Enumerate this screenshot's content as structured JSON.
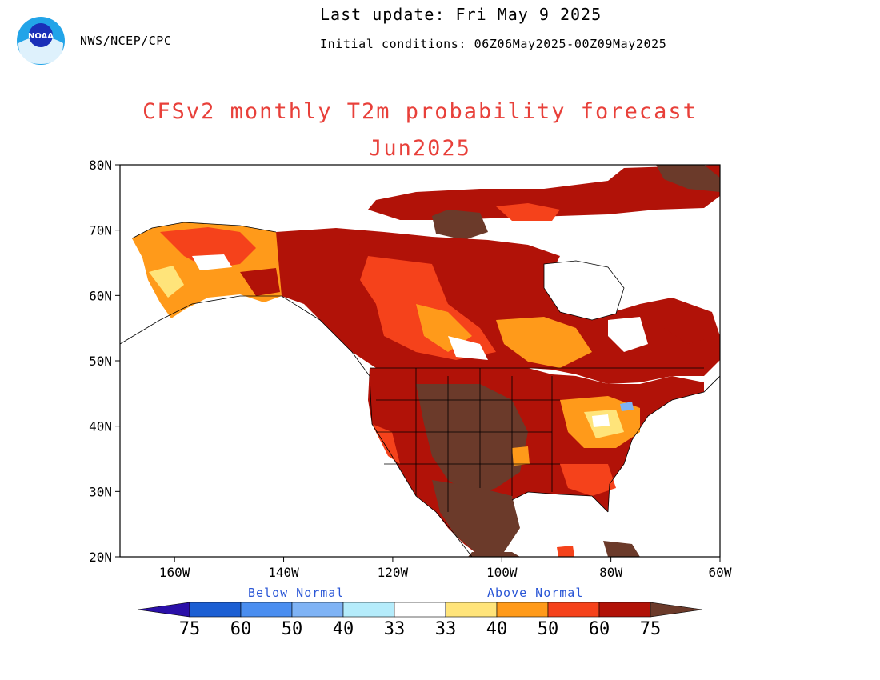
{
  "header": {
    "org": "NWS/NCEP/CPC",
    "last_update": "Last update: Fri May 9 2025",
    "initial_conditions": "Initial conditions: 06Z06May2025-00Z09May2025",
    "logo_text": "NOAA"
  },
  "title": "CFSv2 monthly T2m probability forecast",
  "subtitle": "Jun2025",
  "map": {
    "lat_ticks": [
      "80N",
      "70N",
      "60N",
      "50N",
      "40N",
      "30N",
      "20N"
    ],
    "lon_ticks": [
      "160W",
      "140W",
      "120W",
      "100W",
      "80W",
      "60W"
    ],
    "lat_range": [
      20,
      80
    ],
    "lon_range": [
      -170,
      -60
    ]
  },
  "legend": {
    "below_label": "Below Normal",
    "above_label": "Above Normal",
    "tick_labels": [
      "75",
      "60",
      "50",
      "40",
      "33",
      "33",
      "40",
      "50",
      "60",
      "75"
    ],
    "colors": [
      "#2a0fa8",
      "#1c5fd3",
      "#4a8ef0",
      "#7fb3f5",
      "#b5ecfb",
      "#ffffff",
      "#ffe47a",
      "#ff9a1a",
      "#f5421b",
      "#b11208",
      "#6b3a2a"
    ]
  }
}
